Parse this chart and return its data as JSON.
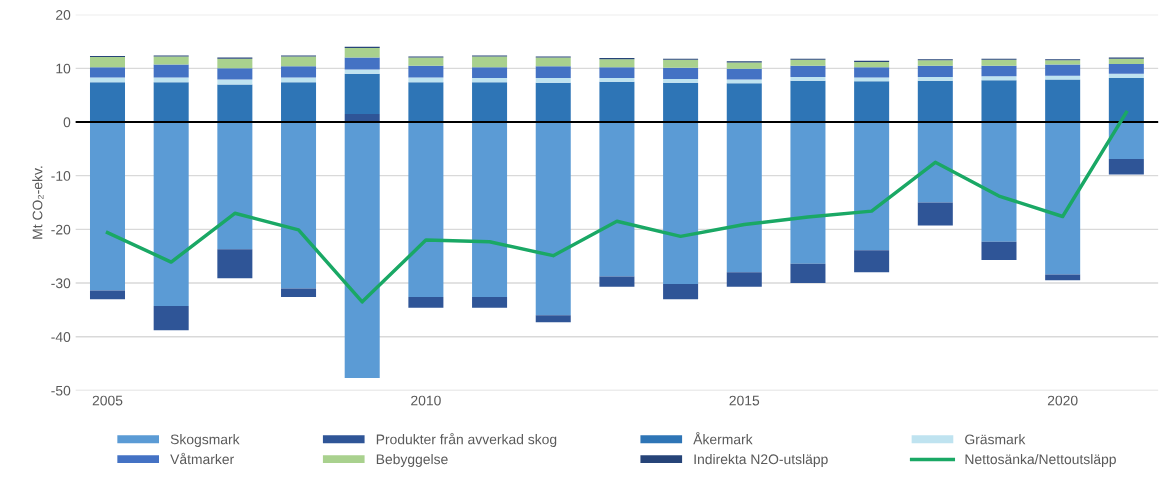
{
  "chart_data": {
    "type": "bar",
    "stacked": true,
    "ylabel": "Mt CO₂-ekv.",
    "x": [
      2005,
      2006,
      2007,
      2008,
      2009,
      2010,
      2011,
      2012,
      2013,
      2014,
      2015,
      2016,
      2017,
      2018,
      2019,
      2020,
      2021
    ],
    "xlim": [
      2004.5,
      2021.5
    ],
    "xticks": [
      2005,
      2010,
      2015,
      2020
    ],
    "ylim": [
      -50,
      20
    ],
    "yticks": [
      -50,
      -40,
      -30,
      -20,
      -10,
      0,
      10,
      20
    ],
    "grid": "y",
    "legend": "bottom",
    "ref_lines": [
      {
        "axis": "y",
        "value": 0,
        "color": "#000000"
      }
    ],
    "series": [
      {
        "name": "Skogsmark",
        "color": "#5b9bd5",
        "values": [
          -31.4,
          -34.3,
          -23.7,
          -31.0,
          -47.7,
          -32.6,
          -32.6,
          -36.0,
          -28.8,
          -30.2,
          -28.0,
          -26.4,
          -23.9,
          -15.0,
          -22.3,
          -28.4,
          -6.9
        ]
      },
      {
        "name": "Produkter från avverkad skog",
        "color": "#2f5597",
        "values": [
          -1.6,
          -4.5,
          -5.4,
          -1.6,
          1.5,
          -2.0,
          -2.0,
          -1.3,
          -1.9,
          -2.8,
          -2.7,
          -3.6,
          -4.1,
          -4.3,
          -3.4,
          -1.1,
          -2.9
        ]
      },
      {
        "name": "Åkermark",
        "color": "#2e75b6",
        "values": [
          7.4,
          7.4,
          7.0,
          7.4,
          7.5,
          7.4,
          7.4,
          7.3,
          7.5,
          7.3,
          7.2,
          7.7,
          7.6,
          7.7,
          7.8,
          7.9,
          8.2
        ]
      },
      {
        "name": "Gräsmark",
        "color": "#bfe3f0",
        "values": [
          0.9,
          0.9,
          0.9,
          0.9,
          0.8,
          0.9,
          0.8,
          0.9,
          0.7,
          0.7,
          0.7,
          0.7,
          0.7,
          0.7,
          0.7,
          0.7,
          0.8
        ]
      },
      {
        "name": "Våtmarker",
        "color": "#4472c4",
        "values": [
          1.9,
          2.4,
          2.1,
          2.1,
          2.2,
          2.2,
          2.0,
          2.2,
          2.0,
          2.1,
          2.0,
          2.1,
          1.9,
          2.1,
          2.0,
          2.1,
          1.8
        ]
      },
      {
        "name": "Bebyggelse",
        "color": "#a9d18e",
        "values": [
          1.9,
          1.5,
          1.8,
          1.8,
          1.8,
          1.5,
          2.0,
          1.6,
          1.5,
          1.5,
          1.2,
          1.1,
          1.0,
          1.0,
          1.1,
          0.8,
          1.0
        ]
      },
      {
        "name": "Indirekta N2O-utsläpp",
        "color": "#264478",
        "values": [
          0.2,
          0.2,
          0.2,
          0.2,
          0.2,
          0.2,
          0.2,
          0.2,
          0.2,
          0.2,
          0.2,
          0.2,
          0.2,
          0.2,
          0.2,
          0.2,
          0.2
        ]
      },
      {
        "name": "Nettosänka/Nettoutsläpp",
        "type": "line",
        "color": "#1aa865",
        "values": [
          -20.6,
          -26.1,
          -17.0,
          -20.1,
          -33.5,
          -22.0,
          -22.3,
          -24.9,
          -18.5,
          -21.3,
          -19.1,
          -17.7,
          -16.6,
          -7.5,
          -13.8,
          -17.6,
          1.8
        ]
      }
    ]
  }
}
